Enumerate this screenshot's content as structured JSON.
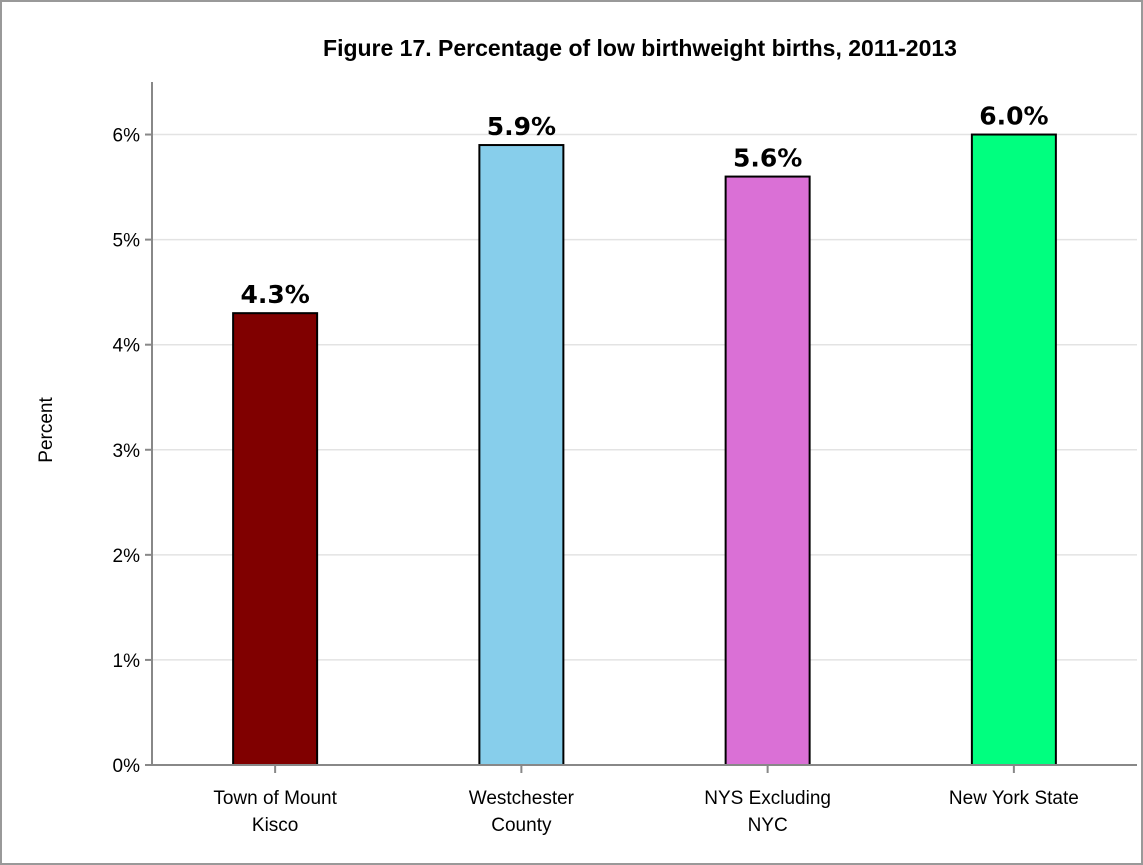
{
  "chart_data": {
    "type": "bar",
    "title": "Figure 17. Percentage of low birthweight births, 2011-2013",
    "y_label": "Percent",
    "categories": [
      [
        "Town of Mount",
        "Kisco"
      ],
      [
        "Westchester",
        "County"
      ],
      [
        "NYS Excluding",
        "NYC"
      ],
      [
        "New York State"
      ]
    ],
    "values": [
      4.3,
      5.9,
      5.6,
      6.0
    ],
    "value_labels": [
      "4.3%",
      "5.9%",
      "5.6%",
      "6.0%"
    ],
    "colors": [
      "#800000",
      "#87ceeb",
      "#da70d6",
      "#00ff7f"
    ],
    "ylim": [
      0,
      6.5
    ],
    "yticks": [
      {
        "value": 0,
        "label": "0%"
      },
      {
        "value": 1,
        "label": "1%"
      },
      {
        "value": 2,
        "label": "2%"
      },
      {
        "value": 3,
        "label": "3%"
      },
      {
        "value": 4,
        "label": "4%"
      },
      {
        "value": 5,
        "label": "5%"
      },
      {
        "value": 6,
        "label": "6%"
      }
    ],
    "grid": true
  }
}
